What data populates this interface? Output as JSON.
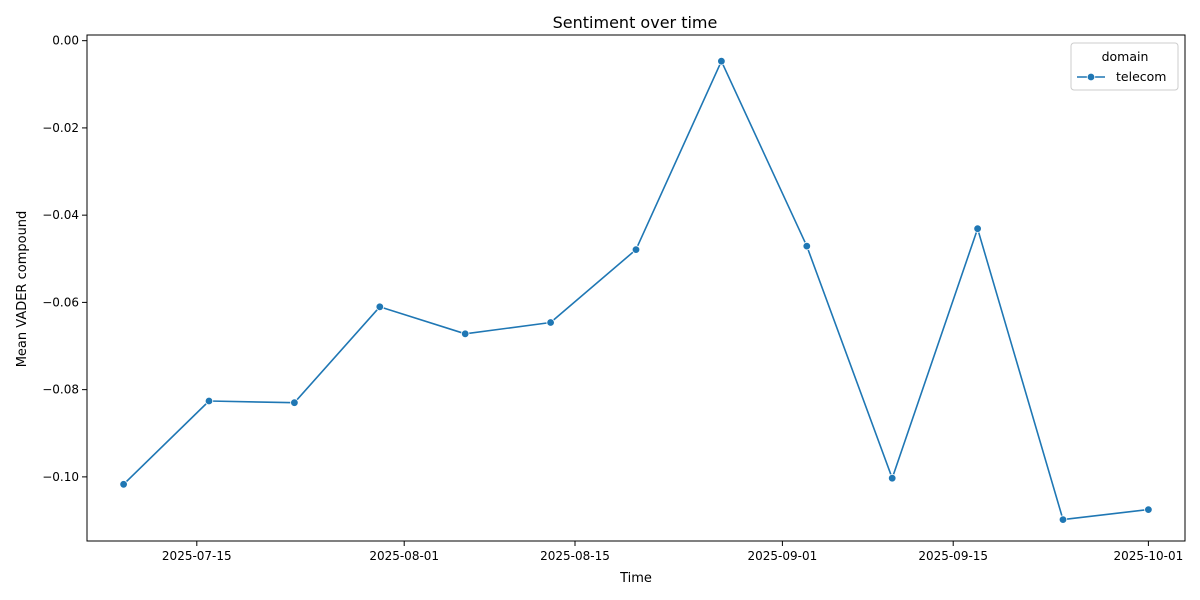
{
  "chart_data": {
    "type": "line",
    "title": "Sentiment over time",
    "xlabel": "Time",
    "ylabel": "Mean VADER compound",
    "legend": {
      "title": "domain",
      "placement": "top-right"
    },
    "grid": false,
    "x_ticks": [
      "2025-07-15",
      "2025-08-01",
      "2025-08-15",
      "2025-09-01",
      "2025-09-15",
      "2025-10-01"
    ],
    "y_ticks": [
      "-0.10",
      "-0.08",
      "-0.06",
      "-0.04",
      "-0.02",
      "0.00"
    ],
    "xlim": [
      "2025-07-06",
      "2025-10-04"
    ],
    "ylim": [
      -0.1147,
      0.0013
    ],
    "series": [
      {
        "name": "telecom",
        "color": "#1f77b4",
        "marker": "circle",
        "x": [
          "2025-07-09",
          "2025-07-16",
          "2025-07-23",
          "2025-07-30",
          "2025-08-06",
          "2025-08-13",
          "2025-08-20",
          "2025-08-27",
          "2025-09-03",
          "2025-09-10",
          "2025-09-17",
          "2025-09-24",
          "2025-10-01"
        ],
        "y": [
          -0.1017,
          -0.0826,
          -0.083,
          -0.061,
          -0.0672,
          -0.0646,
          -0.0479,
          -0.0047,
          -0.0471,
          -0.1003,
          -0.0431,
          -0.1098,
          -0.1075
        ]
      }
    ]
  }
}
